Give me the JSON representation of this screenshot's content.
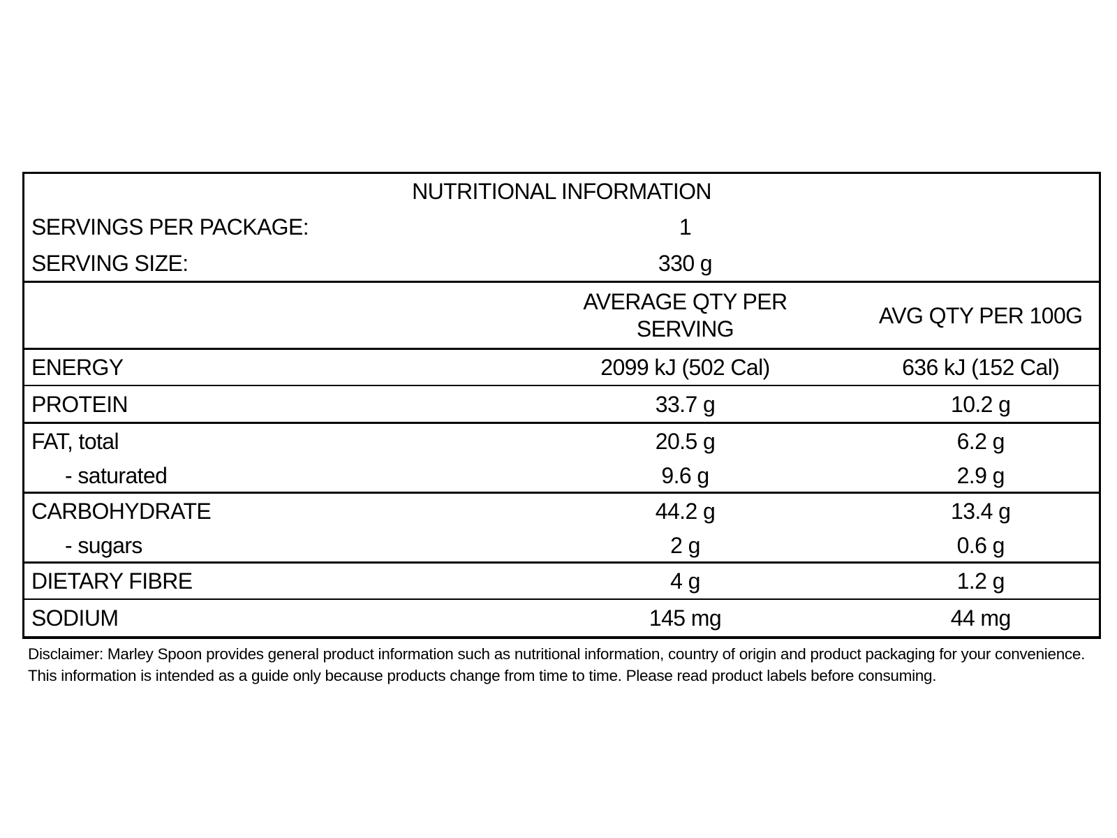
{
  "table": {
    "title": "NUTRITIONAL INFORMATION",
    "servings_per_package": {
      "label": "SERVINGS PER PACKAGE:",
      "value": "1"
    },
    "serving_size": {
      "label": "SERVING SIZE:",
      "value": "330 g"
    },
    "columns": {
      "serving": "AVERAGE QTY PER SERVING",
      "per100g": "AVG QTY PER 100G"
    },
    "rows": [
      {
        "label": "ENERGY",
        "serving": "2099 kJ (502 Cal)",
        "per100g": "636 kJ (152 Cal)"
      },
      {
        "label": "PROTEIN",
        "serving": "33.7 g",
        "per100g": "10.2 g"
      },
      {
        "label": "FAT, total",
        "serving": "20.5 g",
        "per100g": "6.2 g"
      },
      {
        "label": "- saturated",
        "serving": "9.6 g",
        "per100g": "2.9 g"
      },
      {
        "label": "CARBOHYDRATE",
        "serving": "44.2 g",
        "per100g": "13.4 g"
      },
      {
        "label": "- sugars",
        "serving": "2 g",
        "per100g": "0.6 g"
      },
      {
        "label": "DIETARY FIBRE",
        "serving": "4 g",
        "per100g": "1.2 g"
      },
      {
        "label": "SODIUM",
        "serving": "145 mg",
        "per100g": "44 mg"
      }
    ]
  },
  "disclaimer": {
    "line1": "Disclaimer: Marley Spoon provides general product information such as nutritional information, country of origin and product packaging for your convenience.",
    "line2": "This information is intended as a guide only because products change from time to time. Please read product labels before consuming."
  },
  "colors": {
    "border": "#000000",
    "text": "#000000",
    "background": "#ffffff"
  }
}
